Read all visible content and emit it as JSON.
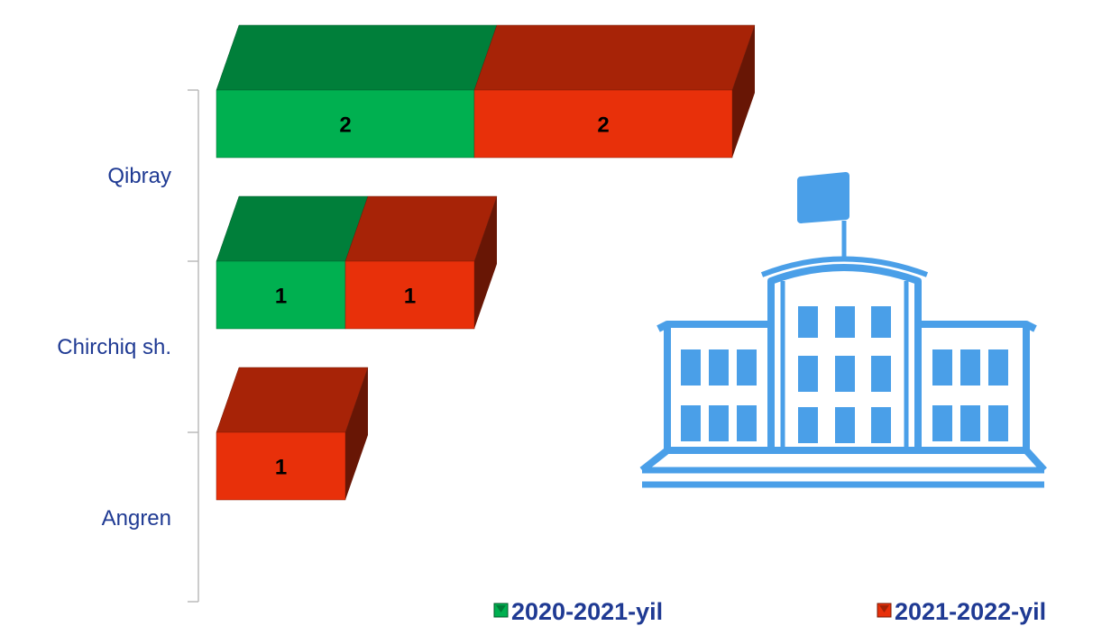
{
  "chart_data": {
    "type": "bar",
    "categories": [
      "Qibray",
      "Chirchiq sh.",
      "Angren"
    ],
    "series": [
      {
        "name": "2020-2021-yil",
        "color": "#00b050",
        "values": [
          2,
          1,
          null
        ]
      },
      {
        "name": "2021-2022-yil",
        "color": "#e8300a",
        "values": [
          2,
          1,
          1
        ]
      }
    ]
  }
}
